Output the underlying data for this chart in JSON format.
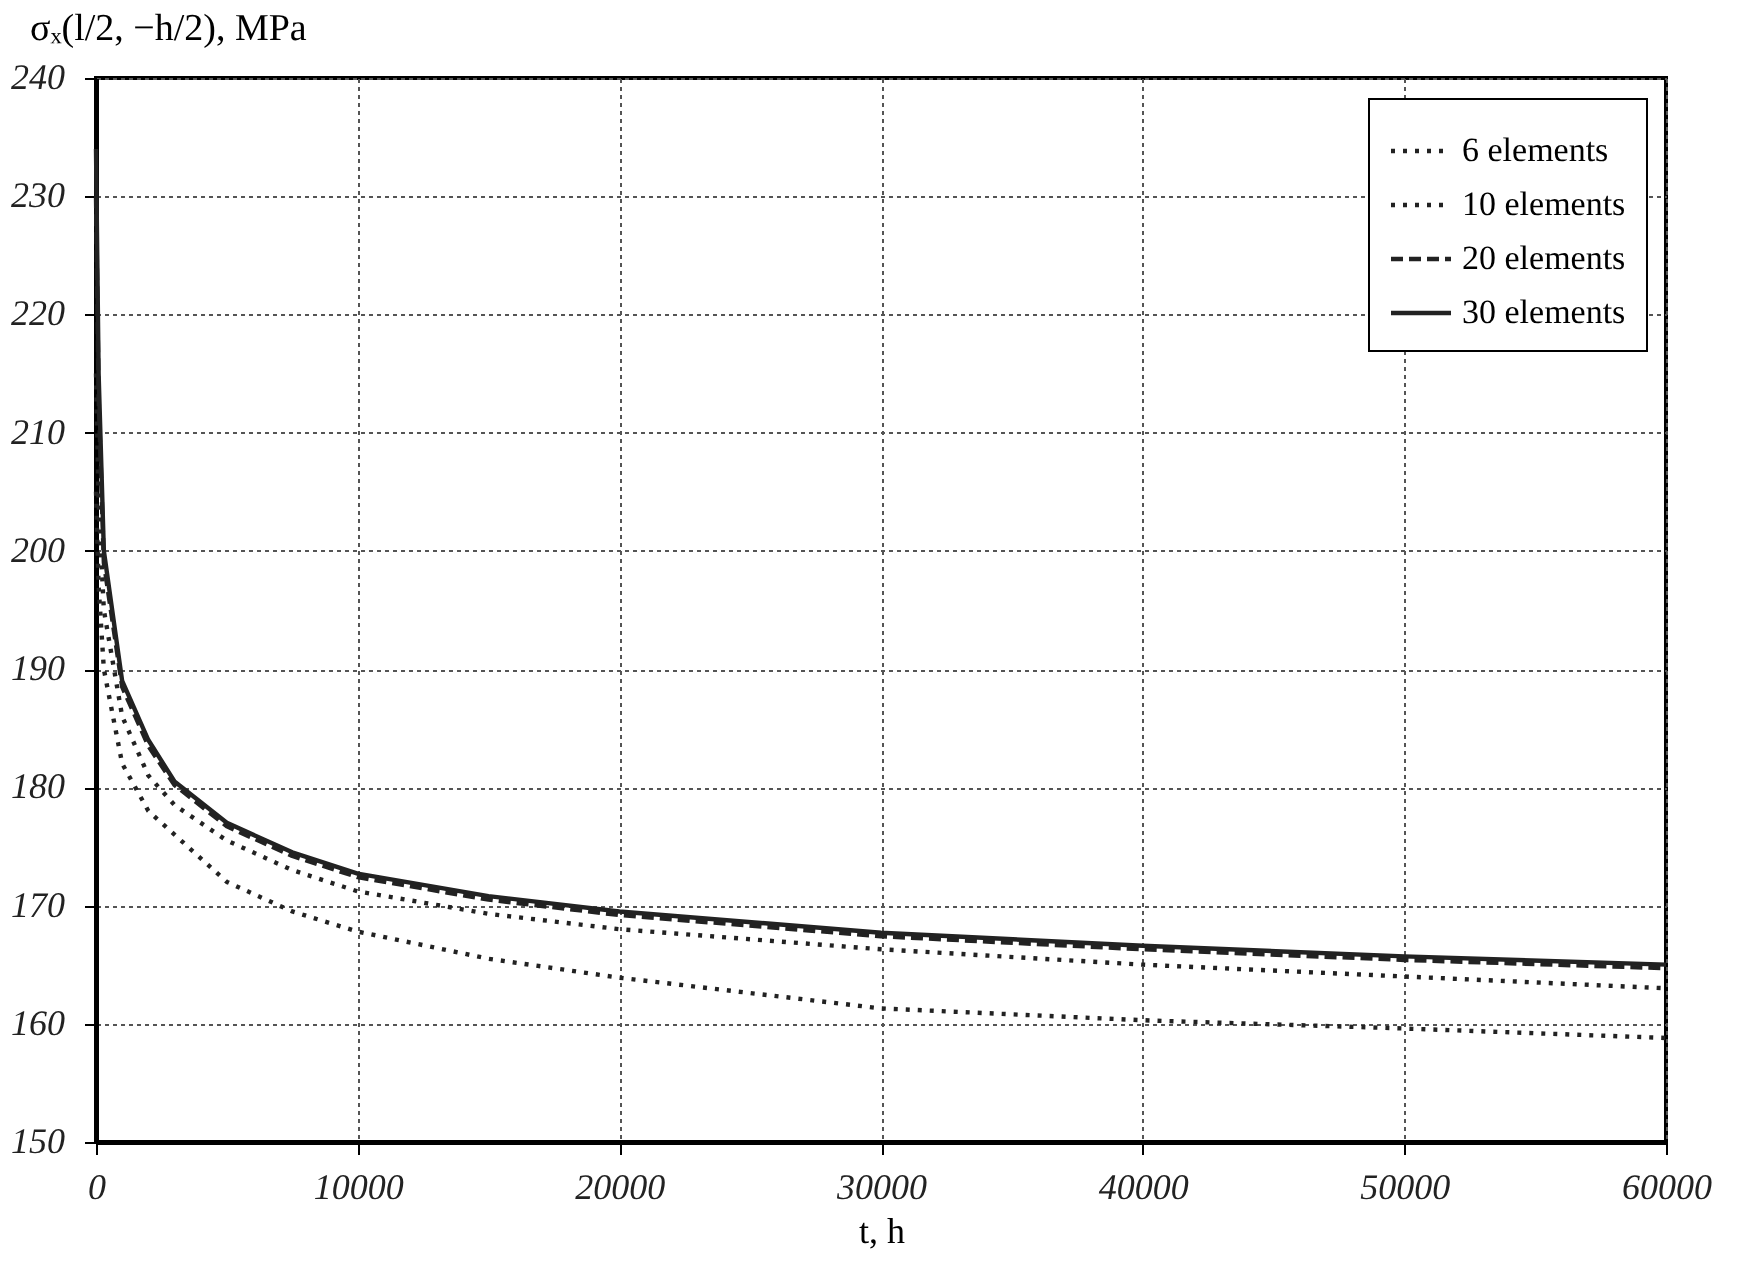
{
  "chart_data": {
    "type": "line",
    "title": "σₓ(l/2, −h/2), MPa",
    "xlabel": "t, h",
    "x": [
      0,
      100,
      300,
      1000,
      2000,
      3000,
      5000,
      7500,
      10000,
      15000,
      20000,
      30000,
      40000,
      50000,
      60000
    ],
    "series": [
      {
        "name": "6 elements",
        "color": "#222222",
        "line_style": "dotted",
        "values": [
          205,
          197,
          190,
          182,
          178,
          176,
          172,
          169.5,
          167.8,
          165.5,
          163.9,
          161.3,
          160.3,
          159.6,
          158.8
        ]
      },
      {
        "name": "10 elements",
        "color": "#222222",
        "line_style": "dotted",
        "values": [
          215,
          204,
          195,
          186,
          181,
          178.5,
          175.5,
          173,
          171.2,
          169.3,
          168,
          166.3,
          165,
          164,
          163
        ]
      },
      {
        "name": "20 elements",
        "color": "#222222",
        "line_style": "dashed",
        "values": [
          230,
          213,
          199,
          188.5,
          183.5,
          180.2,
          176.7,
          174.2,
          172.4,
          170.5,
          169.2,
          167.4,
          166.3,
          165.4,
          164.7
        ]
      },
      {
        "name": "30 elements",
        "color": "#222222",
        "line_style": "solid",
        "values": [
          234,
          215,
          200,
          189,
          184,
          180.5,
          177,
          174.5,
          172.7,
          170.8,
          169.5,
          167.7,
          166.6,
          165.7,
          165
        ]
      }
    ],
    "xlim": [
      0,
      60000
    ],
    "xticks": [
      0,
      10000,
      20000,
      30000,
      40000,
      50000,
      60000
    ],
    "ylim": [
      150,
      240
    ],
    "yticks": [
      150,
      160,
      170,
      180,
      190,
      200,
      210,
      220,
      230,
      240
    ],
    "grid": true,
    "legend": "top right",
    "marker": "none"
  }
}
